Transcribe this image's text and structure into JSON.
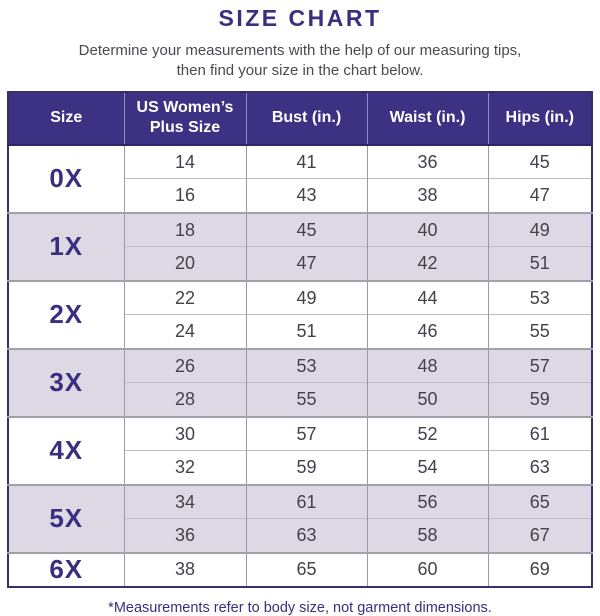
{
  "page": {
    "title": "SIZE CHART",
    "subtitle_line1": "Determine your measurements with the help of our measuring tips,",
    "subtitle_line2": "then find your size in the chart below.",
    "footnote": "*Measurements refer to body size, not garment dimensions."
  },
  "colors": {
    "header_purple": "#3d3184",
    "text_purple": "#3a2e80",
    "shaded_row": "#dcd9e4",
    "number_text": "#44414b",
    "group_border_gray": "#a29fa9",
    "outer_border_purple": "#38306e"
  },
  "table": {
    "headers": [
      "Size",
      "US Women’s Plus Size",
      "Bust (in.)",
      "Waist (in.)",
      "Hips (in.)"
    ],
    "groups": [
      {
        "size": "0X",
        "shaded": false,
        "rows": [
          [
            "14",
            "41",
            "36",
            "45"
          ],
          [
            "16",
            "43",
            "38",
            "47"
          ]
        ]
      },
      {
        "size": "1X",
        "shaded": true,
        "rows": [
          [
            "18",
            "45",
            "40",
            "49"
          ],
          [
            "20",
            "47",
            "42",
            "51"
          ]
        ]
      },
      {
        "size": "2X",
        "shaded": false,
        "rows": [
          [
            "22",
            "49",
            "44",
            "53"
          ],
          [
            "24",
            "51",
            "46",
            "55"
          ]
        ]
      },
      {
        "size": "3X",
        "shaded": true,
        "rows": [
          [
            "26",
            "53",
            "48",
            "57"
          ],
          [
            "28",
            "55",
            "50",
            "59"
          ]
        ]
      },
      {
        "size": "4X",
        "shaded": false,
        "rows": [
          [
            "30",
            "57",
            "52",
            "61"
          ],
          [
            "32",
            "59",
            "54",
            "63"
          ]
        ]
      },
      {
        "size": "5X",
        "shaded": true,
        "rows": [
          [
            "34",
            "61",
            "56",
            "65"
          ],
          [
            "36",
            "63",
            "58",
            "67"
          ]
        ]
      },
      {
        "size": "6X",
        "shaded": false,
        "rows": [
          [
            "38",
            "65",
            "60",
            "69"
          ]
        ]
      }
    ]
  },
  "chart_data": {
    "type": "table",
    "title": "SIZE CHART",
    "columns": [
      "Size",
      "US Women’s Plus Size",
      "Bust (in.)",
      "Waist (in.)",
      "Hips (in.)"
    ],
    "rows": [
      [
        "0X",
        14,
        41,
        36,
        45
      ],
      [
        "0X",
        16,
        43,
        38,
        47
      ],
      [
        "1X",
        18,
        45,
        40,
        49
      ],
      [
        "1X",
        20,
        47,
        42,
        51
      ],
      [
        "2X",
        22,
        49,
        44,
        53
      ],
      [
        "2X",
        24,
        51,
        46,
        55
      ],
      [
        "3X",
        26,
        53,
        48,
        57
      ],
      [
        "3X",
        28,
        55,
        50,
        59
      ],
      [
        "4X",
        30,
        57,
        52,
        61
      ],
      [
        "4X",
        32,
        59,
        54,
        63
      ],
      [
        "5X",
        34,
        61,
        56,
        65
      ],
      [
        "5X",
        36,
        63,
        58,
        67
      ],
      [
        "6X",
        38,
        65,
        60,
        69
      ]
    ],
    "footnote": "*Measurements refer to body size, not garment dimensions."
  }
}
